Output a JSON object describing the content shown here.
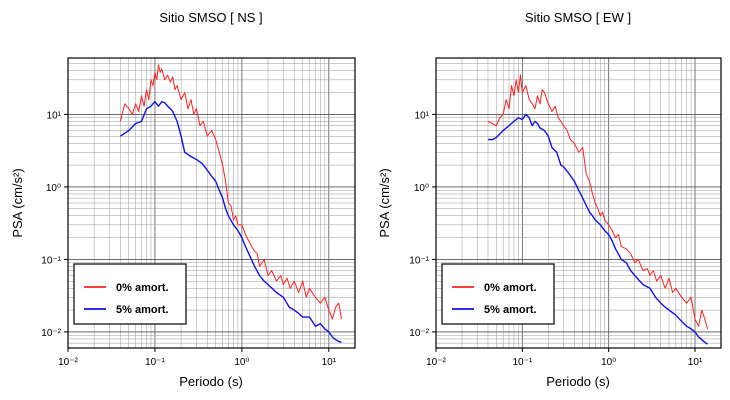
{
  "chart_data": [
    {
      "type": "line",
      "title": "Sitio SMSO [ NS ]",
      "xlabel": "Periodo (s)",
      "ylabel": "PSA (cm/s²)",
      "x_scale": "log",
      "y_scale": "log",
      "xlim": [
        0.01,
        20
      ],
      "ylim": [
        0.006,
        60
      ],
      "x_ticks": [
        "10⁻²",
        "10⁻¹",
        "10⁰",
        "10¹"
      ],
      "y_ticks": [
        "10⁻²",
        "10⁻¹",
        "10⁰",
        "10¹"
      ],
      "grid": true,
      "legend_position": "bottom-left",
      "series": [
        {
          "name": "0% amort.",
          "color": "#ff2020",
          "points": [
            [
              0.04,
              8
            ],
            [
              0.045,
              14
            ],
            [
              0.05,
              12
            ],
            [
              0.055,
              10
            ],
            [
              0.06,
              14
            ],
            [
              0.065,
              11
            ],
            [
              0.07,
              18
            ],
            [
              0.075,
              13
            ],
            [
              0.08,
              22
            ],
            [
              0.085,
              16
            ],
            [
              0.09,
              30
            ],
            [
              0.095,
              25
            ],
            [
              0.1,
              38
            ],
            [
              0.105,
              30
            ],
            [
              0.11,
              48
            ],
            [
              0.115,
              38
            ],
            [
              0.12,
              42
            ],
            [
              0.13,
              30
            ],
            [
              0.14,
              35
            ],
            [
              0.15,
              28
            ],
            [
              0.16,
              33
            ],
            [
              0.17,
              22
            ],
            [
              0.18,
              25
            ],
            [
              0.2,
              16
            ],
            [
              0.22,
              20
            ],
            [
              0.24,
              12
            ],
            [
              0.26,
              16
            ],
            [
              0.28,
              10
            ],
            [
              0.3,
              12
            ],
            [
              0.33,
              7
            ],
            [
              0.36,
              8
            ],
            [
              0.4,
              5
            ],
            [
              0.45,
              6
            ],
            [
              0.5,
              4.5
            ],
            [
              0.55,
              3
            ],
            [
              0.6,
              2
            ],
            [
              0.65,
              1.2
            ],
            [
              0.7,
              0.6
            ],
            [
              0.75,
              0.55
            ],
            [
              0.8,
              0.35
            ],
            [
              0.85,
              0.4
            ],
            [
              0.9,
              0.3
            ],
            [
              1,
              0.3
            ],
            [
              1.1,
              0.22
            ],
            [
              1.2,
              0.18
            ],
            [
              1.3,
              0.15
            ],
            [
              1.4,
              0.13
            ],
            [
              1.5,
              0.12
            ],
            [
              1.6,
              0.08
            ],
            [
              1.8,
              0.1
            ],
            [
              2,
              0.06
            ],
            [
              2.2,
              0.07
            ],
            [
              2.5,
              0.05
            ],
            [
              2.8,
              0.06
            ],
            [
              3,
              0.045
            ],
            [
              3.3,
              0.055
            ],
            [
              3.6,
              0.04
            ],
            [
              4,
              0.05
            ],
            [
              4.5,
              0.035
            ],
            [
              5,
              0.05
            ],
            [
              5.5,
              0.03
            ],
            [
              6,
              0.04
            ],
            [
              7,
              0.03
            ],
            [
              8,
              0.025
            ],
            [
              9,
              0.03
            ],
            [
              10,
              0.02
            ],
            [
              11,
              0.015
            ],
            [
              12,
              0.022
            ],
            [
              13,
              0.025
            ],
            [
              14,
              0.015
            ]
          ]
        },
        {
          "name": "5% amort.",
          "color": "#1010ee",
          "points": [
            [
              0.04,
              5
            ],
            [
              0.045,
              5.5
            ],
            [
              0.05,
              6
            ],
            [
              0.06,
              7.5
            ],
            [
              0.07,
              8
            ],
            [
              0.08,
              12
            ],
            [
              0.09,
              13
            ],
            [
              0.1,
              15
            ],
            [
              0.11,
              13
            ],
            [
              0.12,
              15
            ],
            [
              0.13,
              14.5
            ],
            [
              0.14,
              13
            ],
            [
              0.15,
              12
            ],
            [
              0.16,
              11
            ],
            [
              0.18,
              8
            ],
            [
              0.2,
              5
            ],
            [
              0.22,
              3
            ],
            [
              0.25,
              2.7
            ],
            [
              0.28,
              2.5
            ],
            [
              0.3,
              2.4
            ],
            [
              0.35,
              2.1
            ],
            [
              0.4,
              1.7
            ],
            [
              0.45,
              1.4
            ],
            [
              0.5,
              1.2
            ],
            [
              0.55,
              0.9
            ],
            [
              0.6,
              0.7
            ],
            [
              0.65,
              0.5
            ],
            [
              0.7,
              0.4
            ],
            [
              0.8,
              0.3
            ],
            [
              0.9,
              0.25
            ],
            [
              1,
              0.2
            ],
            [
              1.1,
              0.15
            ],
            [
              1.2,
              0.12
            ],
            [
              1.4,
              0.08
            ],
            [
              1.6,
              0.06
            ],
            [
              1.8,
              0.05
            ],
            [
              2,
              0.045
            ],
            [
              2.5,
              0.035
            ],
            [
              3,
              0.03
            ],
            [
              3.5,
              0.022
            ],
            [
              4,
              0.02
            ],
            [
              4.5,
              0.018
            ],
            [
              5,
              0.016
            ],
            [
              6,
              0.016
            ],
            [
              7,
              0.012
            ],
            [
              8,
              0.013
            ],
            [
              9,
              0.011
            ],
            [
              10,
              0.01
            ],
            [
              11,
              0.0085
            ],
            [
              12,
              0.0078
            ],
            [
              13,
              0.0074
            ],
            [
              14,
              0.0072
            ]
          ]
        }
      ]
    },
    {
      "type": "line",
      "title": "Sitio SMSO [ EW ]",
      "xlabel": "Periodo (s)",
      "ylabel": "PSA (cm/s²)",
      "x_scale": "log",
      "y_scale": "log",
      "xlim": [
        0.01,
        20
      ],
      "ylim": [
        0.006,
        60
      ],
      "x_ticks": [
        "10⁻²",
        "10⁻¹",
        "10⁰",
        "10¹"
      ],
      "y_ticks": [
        "10⁻²",
        "10⁻¹",
        "10⁰",
        "10¹"
      ],
      "grid": true,
      "legend_position": "bottom-left",
      "series": [
        {
          "name": "0% amort.",
          "color": "#ff2020",
          "points": [
            [
              0.04,
              8
            ],
            [
              0.045,
              7.5
            ],
            [
              0.05,
              7
            ],
            [
              0.055,
              9
            ],
            [
              0.06,
              10
            ],
            [
              0.065,
              16
            ],
            [
              0.07,
              12
            ],
            [
              0.075,
              25
            ],
            [
              0.08,
              18
            ],
            [
              0.085,
              30
            ],
            [
              0.09,
              20
            ],
            [
              0.095,
              35
            ],
            [
              0.1,
              20
            ],
            [
              0.11,
              25
            ],
            [
              0.12,
              16
            ],
            [
              0.13,
              14
            ],
            [
              0.14,
              12
            ],
            [
              0.15,
              18
            ],
            [
              0.16,
              14
            ],
            [
              0.17,
              22
            ],
            [
              0.18,
              20
            ],
            [
              0.2,
              14
            ],
            [
              0.22,
              11
            ],
            [
              0.24,
              13
            ],
            [
              0.26,
              9
            ],
            [
              0.28,
              8
            ],
            [
              0.3,
              7
            ],
            [
              0.33,
              6
            ],
            [
              0.36,
              4.5
            ],
            [
              0.4,
              4
            ],
            [
              0.45,
              3
            ],
            [
              0.5,
              3.5
            ],
            [
              0.55,
              1.5
            ],
            [
              0.6,
              1.2
            ],
            [
              0.65,
              0.8
            ],
            [
              0.7,
              0.6
            ],
            [
              0.75,
              0.5
            ],
            [
              0.8,
              0.4
            ],
            [
              0.85,
              0.45
            ],
            [
              0.9,
              0.35
            ],
            [
              1,
              0.3
            ],
            [
              1.1,
              0.25
            ],
            [
              1.2,
              0.2
            ],
            [
              1.3,
              0.22
            ],
            [
              1.4,
              0.15
            ],
            [
              1.6,
              0.14
            ],
            [
              1.8,
              0.12
            ],
            [
              2,
              0.09
            ],
            [
              2.2,
              0.1
            ],
            [
              2.5,
              0.07
            ],
            [
              2.8,
              0.075
            ],
            [
              3,
              0.06
            ],
            [
              3.3,
              0.07
            ],
            [
              3.6,
              0.05
            ],
            [
              4,
              0.06
            ],
            [
              4.5,
              0.04
            ],
            [
              5,
              0.055
            ],
            [
              5.5,
              0.035
            ],
            [
              6,
              0.04
            ],
            [
              7,
              0.03
            ],
            [
              8,
              0.025
            ],
            [
              9,
              0.03
            ],
            [
              10,
              0.015
            ],
            [
              11,
              0.012
            ],
            [
              12,
              0.02
            ],
            [
              13,
              0.015
            ],
            [
              14,
              0.011
            ]
          ]
        },
        {
          "name": "5% amort.",
          "color": "#1010ee",
          "points": [
            [
              0.04,
              4.5
            ],
            [
              0.045,
              4.5
            ],
            [
              0.05,
              4.8
            ],
            [
              0.06,
              6
            ],
            [
              0.07,
              7
            ],
            [
              0.08,
              8
            ],
            [
              0.09,
              9
            ],
            [
              0.1,
              8.5
            ],
            [
              0.11,
              10
            ],
            [
              0.12,
              9
            ],
            [
              0.13,
              7
            ],
            [
              0.14,
              8
            ],
            [
              0.15,
              7.5
            ],
            [
              0.16,
              6.5
            ],
            [
              0.18,
              6
            ],
            [
              0.2,
              5
            ],
            [
              0.22,
              3.5
            ],
            [
              0.25,
              3
            ],
            [
              0.28,
              2
            ],
            [
              0.3,
              1.9
            ],
            [
              0.35,
              1.5
            ],
            [
              0.4,
              1.2
            ],
            [
              0.45,
              0.9
            ],
            [
              0.5,
              0.7
            ],
            [
              0.55,
              0.55
            ],
            [
              0.6,
              0.45
            ],
            [
              0.65,
              0.4
            ],
            [
              0.7,
              0.35
            ],
            [
              0.8,
              0.3
            ],
            [
              0.9,
              0.25
            ],
            [
              1,
              0.22
            ],
            [
              1.1,
              0.18
            ],
            [
              1.2,
              0.14
            ],
            [
              1.4,
              0.1
            ],
            [
              1.6,
              0.09
            ],
            [
              1.8,
              0.07
            ],
            [
              2,
              0.06
            ],
            [
              2.5,
              0.045
            ],
            [
              3,
              0.04
            ],
            [
              3.5,
              0.03
            ],
            [
              4,
              0.025
            ],
            [
              4.5,
              0.022
            ],
            [
              5,
              0.02
            ],
            [
              6,
              0.017
            ],
            [
              7,
              0.014
            ],
            [
              8,
              0.012
            ],
            [
              9,
              0.011
            ],
            [
              10,
              0.01
            ],
            [
              11,
              0.0085
            ],
            [
              12,
              0.0078
            ],
            [
              13,
              0.0072
            ],
            [
              14,
              0.0068
            ]
          ]
        }
      ]
    }
  ]
}
